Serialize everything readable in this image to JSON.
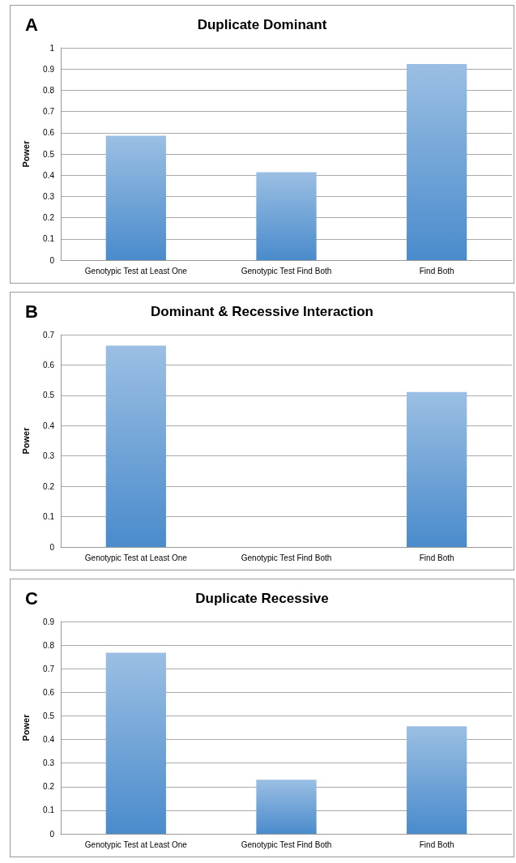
{
  "chart_data": [
    {
      "type": "bar",
      "title": "Duplicate Dominant",
      "annotations": [
        "A"
      ],
      "ylabel": "Power",
      "categories": [
        "Genotypic Test at Least One",
        "Genotypic Test Find Both",
        "Find Both"
      ],
      "series": [
        {
          "color": "#4a8bcc",
          "values": [
            0.586,
            0.414,
            0.924
          ]
        }
      ],
      "ylim": [
        0,
        1
      ],
      "yticks": [
        0,
        0.1,
        0.2,
        0.3,
        0.4,
        0.5,
        0.6,
        0.7,
        0.8,
        0.9,
        1
      ],
      "grid": "y"
    },
    {
      "type": "bar",
      "title": "Dominant & Recessive Interaction",
      "annotations": [
        "B"
      ],
      "ylabel": "Power",
      "categories": [
        "Genotypic Test at Least One",
        "Genotypic Test Find Both",
        "Find Both"
      ],
      "series": [
        {
          "color": "#4a8bcc",
          "values": [
            0.664,
            0,
            0.511
          ]
        }
      ],
      "ylim": [
        0,
        0.7
      ],
      "yticks": [
        0,
        0.1,
        0.2,
        0.3,
        0.4,
        0.5,
        0.6,
        0.7
      ],
      "grid": "y"
    },
    {
      "type": "bar",
      "title": "Duplicate Recessive",
      "annotations": [
        "C"
      ],
      "ylabel": "Power",
      "categories": [
        "Genotypic Test at Least One",
        "Genotypic Test Find Both",
        "Find Both"
      ],
      "series": [
        {
          "color": "#4a8bcc",
          "values": [
            0.768,
            0.229,
            0.456
          ]
        }
      ],
      "ylim": [
        0,
        0.9
      ],
      "yticks": [
        0,
        0.1,
        0.2,
        0.3,
        0.4,
        0.5,
        0.6,
        0.7,
        0.8,
        0.9
      ],
      "grid": "y"
    }
  ]
}
